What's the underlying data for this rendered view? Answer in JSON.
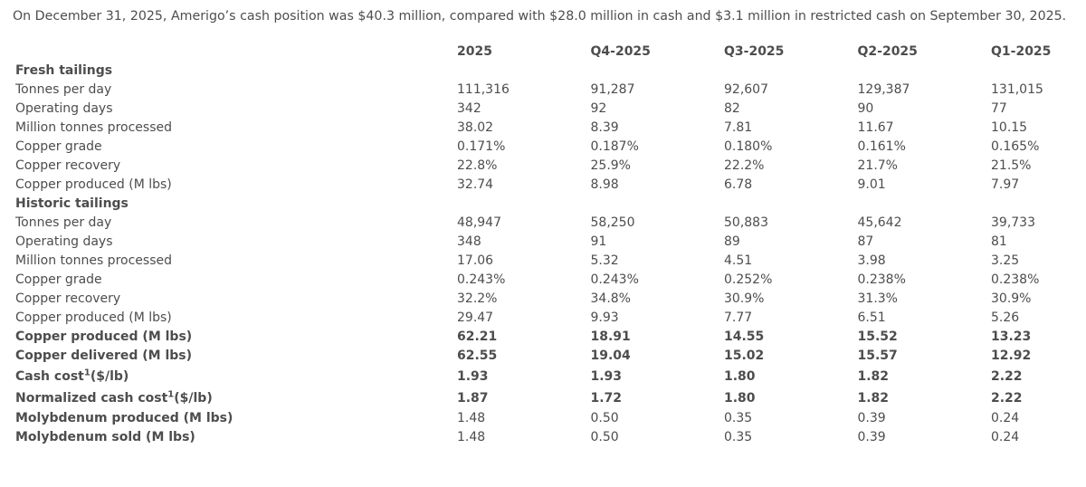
{
  "intro": "On December 31, 2025, Amerigo’s cash position was $40.3 million, compared with $28.0 million in cash and $3.1 million in restricted cash on September 30, 2025.",
  "headers": [
    "",
    "2025",
    "Q4-2025",
    "Q3-2025",
    "Q2-2025",
    "Q1-2025"
  ],
  "rows": [
    {
      "label": "Fresh tailings",
      "values": [
        "",
        "",
        "",
        "",
        ""
      ],
      "style": "section"
    },
    {
      "label": "Tonnes per day",
      "values": [
        "111,316",
        "91,287",
        "92,607",
        "129,387",
        "131,015"
      ]
    },
    {
      "label": "Operating days",
      "values": [
        "342",
        "92",
        "82",
        "90",
        "77"
      ]
    },
    {
      "label": "Million tonnes processed",
      "values": [
        "38.02",
        "8.39",
        "7.81",
        "11.67",
        "10.15"
      ]
    },
    {
      "label": "Copper grade",
      "values": [
        "0.171%",
        "0.187%",
        "0.180%",
        "0.161%",
        "0.165%"
      ]
    },
    {
      "label": "Copper recovery",
      "values": [
        "22.8%",
        "25.9%",
        "22.2%",
        "21.7%",
        "21.5%"
      ]
    },
    {
      "label": "Copper produced (M lbs)",
      "values": [
        "32.74",
        "8.98",
        "6.78",
        "9.01",
        "7.97"
      ]
    },
    {
      "label": "Historic tailings",
      "values": [
        "",
        "",
        "",
        "",
        ""
      ],
      "style": "section"
    },
    {
      "label": "Tonnes per day",
      "values": [
        "48,947",
        "58,250",
        "50,883",
        "45,642",
        "39,733"
      ]
    },
    {
      "label": "Operating days",
      "values": [
        "348",
        "91",
        "89",
        "87",
        "81"
      ]
    },
    {
      "label": "Million tonnes processed",
      "values": [
        "17.06",
        "5.32",
        "4.51",
        "3.98",
        "3.25"
      ]
    },
    {
      "label": "Copper grade",
      "values": [
        "0.243%",
        "0.243%",
        "0.252%",
        "0.238%",
        "0.238%"
      ]
    },
    {
      "label": "Copper recovery",
      "values": [
        "32.2%",
        "34.8%",
        "30.9%",
        "31.3%",
        "30.9%"
      ]
    },
    {
      "label": "Copper produced (M lbs)",
      "values": [
        "29.47",
        "9.93",
        "7.77",
        "6.51",
        "5.26"
      ]
    },
    {
      "label": "Copper produced (M lbs)",
      "values": [
        "62.21",
        "18.91",
        "14.55",
        "15.52",
        "13.23"
      ],
      "style": "bold"
    },
    {
      "label": "Copper delivered (M lbs)",
      "values": [
        "62.55",
        "19.04",
        "15.02",
        "15.57",
        "12.92"
      ],
      "style": "bold"
    },
    {
      "label": "Cash cost",
      "sup": "1",
      "suffix": "($/lb)",
      "values": [
        "1.93",
        "1.93",
        "1.80",
        "1.82",
        "2.22"
      ],
      "style": "bold tall"
    },
    {
      "label": "Normalized cash cost",
      "sup": "1",
      "suffix": "($/lb)",
      "values": [
        "1.87",
        "1.72",
        "1.80",
        "1.82",
        "2.22"
      ],
      "style": "bold tall"
    },
    {
      "label": "Molybdenum produced (M lbs)",
      "values": [
        "1.48",
        "0.50",
        "0.35",
        "0.39",
        "0.24"
      ],
      "style": "labelbold"
    },
    {
      "label": "Molybdenum sold (M lbs)",
      "values": [
        "1.48",
        "0.50",
        "0.35",
        "0.39",
        "0.24"
      ],
      "style": "labelbold"
    }
  ]
}
